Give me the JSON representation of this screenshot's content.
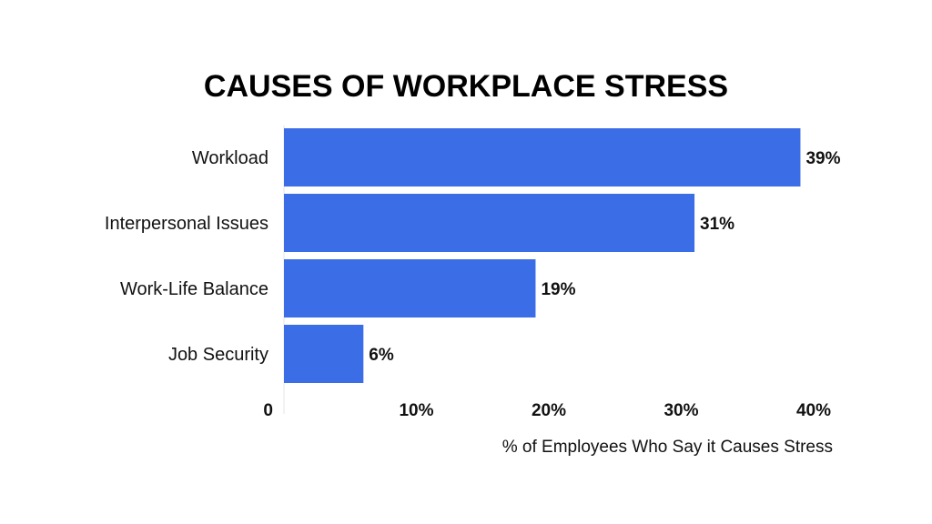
{
  "chart_data": {
    "type": "bar",
    "orientation": "horizontal",
    "title": "CAUSES OF WORKPLACE STRESS",
    "categories": [
      "Workload",
      "Interpersonal Issues",
      "Work-Life Balance",
      "Job Security"
    ],
    "values": [
      39,
      31,
      19,
      6
    ],
    "value_labels": [
      "39%",
      "31%",
      "19%",
      "6%"
    ],
    "xlabel": "% of Employees Who Say it Causes Stress",
    "ylabel": "",
    "xlim": [
      0,
      40
    ],
    "xticks": [
      0,
      10,
      20,
      30,
      40
    ],
    "xtick_labels": [
      "0",
      "10%",
      "20%",
      "30%",
      "40%"
    ],
    "grid": false,
    "bar_color": "#3b6de6"
  }
}
